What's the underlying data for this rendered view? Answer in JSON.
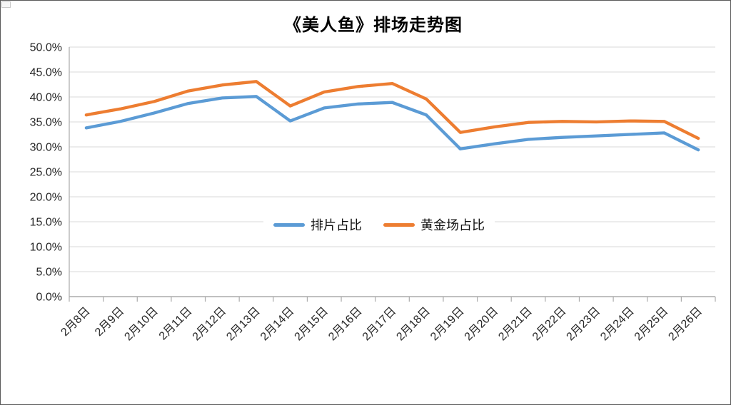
{
  "window": {
    "title": "《美人鱼》排场走势图"
  },
  "y_axis": {
    "tick_labels": [
      "50.0%",
      "45.0%",
      "40.0%",
      "35.0%",
      "30.0%",
      "25.0%",
      "20.0%",
      "15.0%",
      "10.0%",
      "5.0%",
      "0.0%"
    ]
  },
  "x_axis": {
    "tick_labels": [
      "2月8日",
      "2月9日",
      "2月10日",
      "2月11日",
      "2月12日",
      "2月13日",
      "2月14日",
      "2月15日",
      "2月16日",
      "2月17日",
      "2月18日",
      "2月19日",
      "2月20日",
      "2月21日",
      "2月22日",
      "2月23日",
      "2月24日",
      "2月25日",
      "2月26日"
    ]
  },
  "legend": {
    "items": [
      {
        "label": "排片占比",
        "color": "#5B9BD5"
      },
      {
        "label": "黄金场占比",
        "color": "#ED7D31"
      }
    ]
  },
  "colors": {
    "gridline": "#D9D9D9",
    "axis": "#ABABAB",
    "tick_text": "#262626",
    "series_blue": "#5B9BD5",
    "series_orange": "#ED7D31"
  },
  "chart_data": {
    "type": "line",
    "title": "《美人鱼》排场走势图",
    "x": [
      "2月8日",
      "2月9日",
      "2月10日",
      "2月11日",
      "2月12日",
      "2月13日",
      "2月14日",
      "2月15日",
      "2月16日",
      "2月17日",
      "2月18日",
      "2月19日",
      "2月20日",
      "2月21日",
      "2月22日",
      "2月23日",
      "2月24日",
      "2月25日",
      "2月26日"
    ],
    "series": [
      {
        "name": "排片占比",
        "color": "#5B9BD5",
        "values": [
          33.8,
          35.1,
          36.8,
          38.7,
          39.8,
          40.1,
          35.2,
          37.8,
          38.6,
          38.9,
          36.4,
          29.6,
          30.6,
          31.5,
          31.9,
          32.2,
          32.5,
          32.8,
          29.4
        ]
      },
      {
        "name": "黄金场占比",
        "color": "#ED7D31",
        "values": [
          36.4,
          37.6,
          39.1,
          41.2,
          42.4,
          43.1,
          38.2,
          41.0,
          42.1,
          42.7,
          39.6,
          32.9,
          34.0,
          34.9,
          35.1,
          35.0,
          35.2,
          35.1,
          31.7
        ]
      }
    ],
    "ylabel": "",
    "xlabel": "",
    "ylim": [
      0,
      50
    ],
    "y_tick_step": 5,
    "y_tick_format": "percent_one_decimal",
    "grid": true,
    "legend_position": "inside-center"
  }
}
